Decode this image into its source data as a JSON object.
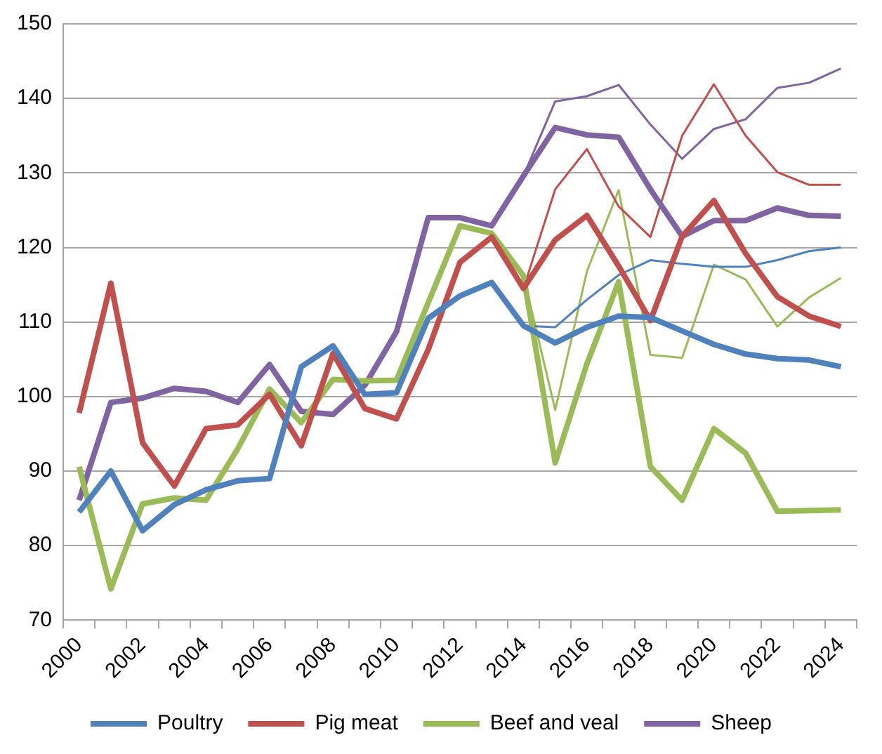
{
  "chart_data": {
    "type": "line",
    "categories": [
      "2000",
      null,
      "2002",
      null,
      "2004",
      null,
      "2006",
      null,
      "2008",
      null,
      "2010",
      null,
      "2012",
      null,
      "2014",
      null,
      "2016",
      null,
      "2018",
      null,
      "2020",
      null,
      "2022",
      null,
      "2024"
    ],
    "series": [
      {
        "name": "Poultry",
        "color": "#4f81bd",
        "values": [
          84.5,
          90,
          82,
          85.5,
          87.5,
          88.7,
          89,
          104,
          106.8,
          100.3,
          100.5,
          110.5,
          113.5,
          115.3,
          109.5,
          107.2,
          109.3,
          110.8,
          110.6,
          108.8,
          107,
          105.7,
          105.1,
          104.9,
          104
        ]
      },
      {
        "name": "Pig meat",
        "color": "#c0504d",
        "values": [
          97.8,
          115.2,
          93.8,
          88,
          95.7,
          96.2,
          100.3,
          93.4,
          105.8,
          98.4,
          97,
          106.3,
          118,
          121.4,
          114.5,
          121,
          124.3,
          117.5,
          110.2,
          121.5,
          126.3,
          119.2,
          113.4,
          110.8,
          109.4
        ]
      },
      {
        "name": "Beef and veal",
        "color": "#9bbb59",
        "values": [
          90.6,
          74.2,
          85.6,
          86.4,
          86.1,
          93,
          101,
          96.5,
          102.3,
          102.1,
          102.2,
          112.6,
          122.9,
          121.9,
          116.2,
          91.1,
          104.4,
          115.4,
          90.6,
          86.1,
          95.7,
          92.4,
          84.6,
          84.7,
          84.8
        ]
      },
      {
        "name": "Sheep",
        "color": "#8064a2",
        "values": [
          86.1,
          99.2,
          99.8,
          101.1,
          100.7,
          99.2,
          104.3,
          98,
          97.6,
          101.5,
          108.7,
          124,
          124,
          122.9,
          129.6,
          136.1,
          135.1,
          134.8,
          127.8,
          121.5,
          123.6,
          123.6,
          125.3,
          124.3,
          124.2
        ]
      },
      {
        "color": "#4f81bd",
        "values": [
          null,
          null,
          null,
          null,
          null,
          null,
          null,
          null,
          null,
          null,
          null,
          null,
          null,
          null,
          109.5,
          109.3,
          113,
          116.3,
          118.3,
          117.8,
          117.4,
          117.4,
          118.3,
          119.5,
          120
        ]
      },
      {
        "color": "#c0504d",
        "values": [
          null,
          null,
          null,
          null,
          null,
          null,
          null,
          null,
          null,
          null,
          null,
          null,
          null,
          null,
          114.5,
          127.8,
          133.2,
          125.5,
          121.4,
          135,
          141.9,
          135,
          130.1,
          128.4,
          128.4
        ]
      },
      {
        "color": "#9bbb59",
        "values": [
          null,
          null,
          null,
          null,
          null,
          null,
          null,
          null,
          null,
          null,
          null,
          null,
          null,
          null,
          116.2,
          98.2,
          116.8,
          127.7,
          105.6,
          105.2,
          117.7,
          115.7,
          109.4,
          113.3,
          115.9
        ]
      },
      {
        "color": "#8064a2",
        "values": [
          null,
          null,
          null,
          null,
          null,
          null,
          null,
          null,
          null,
          null,
          null,
          null,
          null,
          null,
          129.6,
          139.6,
          140.3,
          141.8,
          136.5,
          131.9,
          135.9,
          137.2,
          141.4,
          142.1,
          144
        ]
      }
    ],
    "ylim": [
      70,
      150
    ],
    "yticks": [
      70,
      80,
      90,
      100,
      110,
      120,
      130,
      140,
      150
    ],
    "grid": "y",
    "legend": "bottom",
    "marker": "none"
  }
}
